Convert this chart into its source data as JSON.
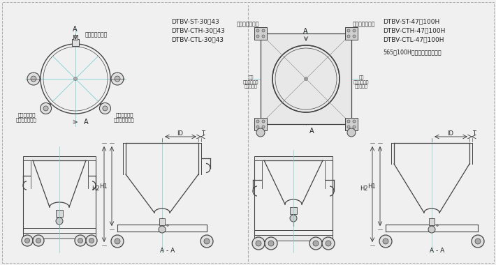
{
  "bg_color": "#f0f0f0",
  "line_color": "#444444",
  "cyan_color": "#7ecece",
  "left_labels": {
    "caster_top": "自在キャスター",
    "stopper_left": "ストッパー付\n自在キャスター",
    "stopper_right": "ストッパー付\n自在キャスター",
    "model1": "DTBV-ST-30～43",
    "model2": "DTBV-CTH-30～43",
    "model3": "DTBV-CTL-30～43",
    "AA_label": "A - A",
    "H1": "H1",
    "H2": "H2",
    "ID": "ID",
    "T": "T"
  },
  "right_labels": {
    "fixed_left": "固定キャスター",
    "fixed_right": "固定キャスター",
    "stopper_lr": "自在\nストッパー付\nキャスター",
    "model1": "DTBV-ST-47～100H",
    "model2": "DTBV-CTH-47～100H",
    "model3": "DTBV-CTL-47～100H",
    "note": "565～100Hサイズは取っ手無し",
    "AA_label": "A - A",
    "H1": "H1",
    "H2": "H2",
    "ID": "ID",
    "T": "T"
  }
}
